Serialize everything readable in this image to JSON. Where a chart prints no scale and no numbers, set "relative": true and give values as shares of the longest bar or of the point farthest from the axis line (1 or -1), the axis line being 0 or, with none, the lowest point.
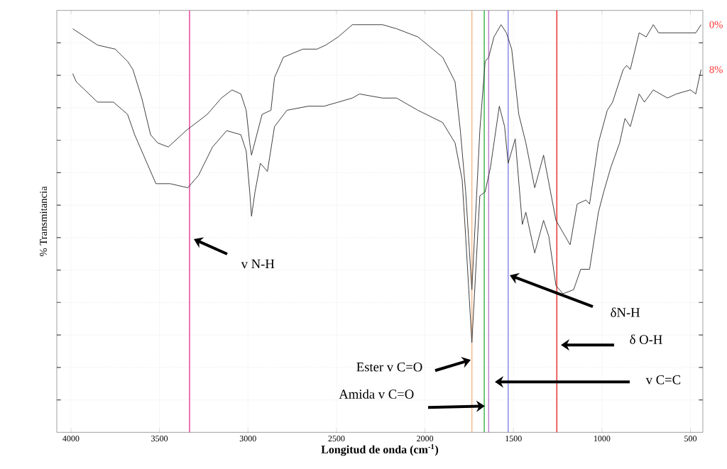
{
  "chart_data": {
    "type": "line",
    "relative": true,
    "xlabel": "**Longitud de onda (cm$^{-1}$)**",
    "ylabel": "% Transmitancia",
    "xlim": [
      4080,
      430
    ],
    "xticks": [
      4000,
      3500,
      3000,
      2500,
      2000,
      1500,
      1000,
      500
    ],
    "grid": true,
    "series": [
      {
        "name": "0%",
        "color": "#333333",
        "x": [
          3990,
          3850,
          3750,
          3680,
          3650,
          3600,
          3550,
          3510,
          3450,
          3350,
          3230,
          3150,
          3090,
          3040,
          3010,
          2990,
          2980,
          2950,
          2920,
          2870,
          2850,
          2800,
          2690,
          2610,
          2560,
          2490,
          2410,
          2240,
          2160,
          2040,
          1900,
          1830,
          1800,
          1770,
          1735,
          1690,
          1660,
          1640,
          1610,
          1570,
          1540,
          1510,
          1490,
          1470,
          1430,
          1380,
          1330,
          1260,
          1180,
          1140,
          1090,
          1070,
          1020,
          970,
          940,
          880,
          860,
          840,
          790,
          750,
          710,
          680,
          580,
          510,
          470,
          440
        ],
        "values": [
          0.99,
          0.95,
          0.94,
          0.91,
          0.89,
          0.82,
          0.73,
          0.71,
          0.7,
          0.74,
          0.78,
          0.82,
          0.84,
          0.83,
          0.79,
          0.71,
          0.68,
          0.73,
          0.78,
          0.79,
          0.87,
          0.92,
          0.94,
          0.94,
          0.95,
          0.97,
          1.0,
          1.0,
          0.99,
          0.97,
          0.92,
          0.86,
          0.74,
          0.59,
          0.35,
          0.74,
          0.91,
          0.92,
          0.97,
          1.0,
          0.98,
          0.94,
          0.86,
          0.78,
          0.71,
          0.6,
          0.68,
          0.52,
          0.46,
          0.56,
          0.57,
          0.56,
          0.71,
          0.79,
          0.81,
          0.89,
          0.9,
          0.89,
          0.98,
          0.97,
          1.0,
          0.98,
          0.98,
          0.98,
          0.98,
          1.0
        ]
      },
      {
        "name": "8%",
        "color": "#333333",
        "x": [
          3990,
          3970,
          3850,
          3760,
          3680,
          3640,
          3590,
          3520,
          3440,
          3340,
          3280,
          3200,
          3120,
          3040,
          3010,
          2990,
          2980,
          2960,
          2930,
          2890,
          2850,
          2780,
          2660,
          2570,
          2410,
          2370,
          2240,
          2160,
          2040,
          1900,
          1830,
          1790,
          1770,
          1735,
          1690,
          1660,
          1630,
          1580,
          1550,
          1530,
          1490,
          1450,
          1430,
          1380,
          1330,
          1300,
          1260,
          1220,
          1160,
          1120,
          1070,
          1020,
          990,
          950,
          900,
          870,
          840,
          790,
          760,
          710,
          630,
          580,
          500,
          470,
          440
        ],
        "values": [
          0.88,
          0.86,
          0.81,
          0.81,
          0.78,
          0.73,
          0.68,
          0.61,
          0.61,
          0.6,
          0.63,
          0.7,
          0.74,
          0.73,
          0.69,
          0.59,
          0.53,
          0.59,
          0.66,
          0.64,
          0.75,
          0.79,
          0.8,
          0.8,
          0.82,
          0.83,
          0.82,
          0.82,
          0.79,
          0.76,
          0.71,
          0.62,
          0.48,
          0.22,
          0.58,
          0.59,
          0.65,
          0.8,
          0.75,
          0.66,
          0.72,
          0.51,
          0.54,
          0.44,
          0.52,
          0.48,
          0.36,
          0.34,
          0.35,
          0.4,
          0.4,
          0.54,
          0.59,
          0.65,
          0.71,
          0.77,
          0.75,
          0.83,
          0.81,
          0.84,
          0.82,
          0.83,
          0.84,
          0.83,
          0.89
        ]
      }
    ],
    "ref_lines": [
      {
        "axis": "x",
        "value": 3330,
        "color": "#e8409f"
      },
      {
        "axis": "x",
        "value": 1735,
        "color": "#f5b88a"
      },
      {
        "axis": "x",
        "value": 1665,
        "color": "#3cb44b"
      },
      {
        "axis": "x",
        "value": 1640,
        "color": "#c080d0"
      },
      {
        "axis": "x",
        "value": 1530,
        "color": "#8888ee"
      },
      {
        "axis": "x",
        "value": 1255,
        "color": "#e83030"
      }
    ],
    "annotations": [
      "v N-H",
      "δN-H",
      "δ O-H",
      "v C=C",
      "Ester  v C=O",
      "Amida v C=O"
    ]
  }
}
